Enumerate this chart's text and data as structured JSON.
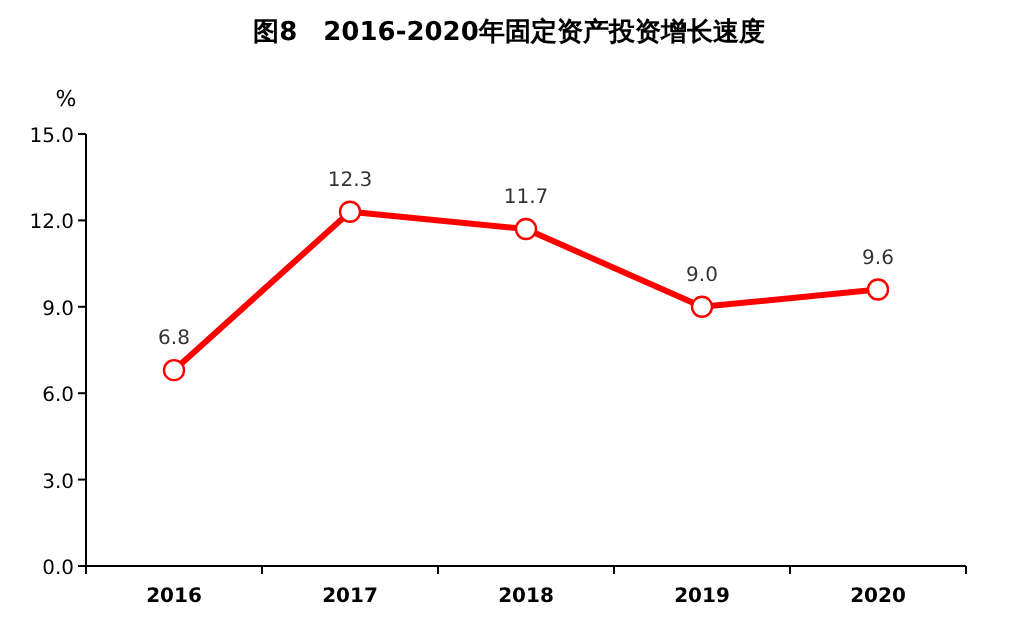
{
  "chart_data": {
    "type": "line",
    "title": "图8　2016-2020年固定资产投资增长速度",
    "ylabel": "%",
    "categories": [
      "2016",
      "2017",
      "2018",
      "2019",
      "2020"
    ],
    "series": [
      {
        "color": "#ff0000",
        "values": [
          6.8,
          12.3,
          11.7,
          9.0,
          9.6
        ],
        "value_labels": [
          "6.8",
          "12.3",
          "11.7",
          "9.0",
          "9.6"
        ]
      }
    ],
    "ylim": [
      0,
      15
    ],
    "yticks": [
      {
        "value": 0,
        "label": "0.0"
      },
      {
        "value": 3,
        "label": "3.0"
      },
      {
        "value": 6,
        "label": "6.0"
      },
      {
        "value": 9,
        "label": "9.0"
      },
      {
        "value": 12,
        "label": "12.0"
      },
      {
        "value": 15,
        "label": "15.0"
      }
    ],
    "marker": "circle"
  }
}
